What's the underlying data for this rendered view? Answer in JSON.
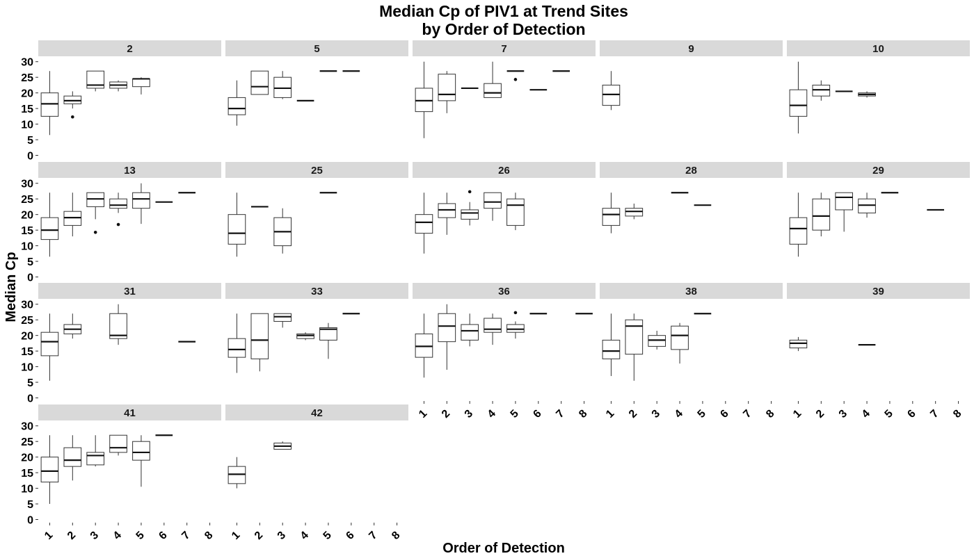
{
  "chart_data": {
    "type": "boxplot",
    "title": "Median Cp of PIV1 at Trend Sites",
    "subtitle": "by Order of Detection",
    "xlabel": "Order of Detection",
    "ylabel": "Median Cp",
    "x_categories": [
      "1",
      "2",
      "3",
      "4",
      "5",
      "6",
      "7",
      "8"
    ],
    "y_ticks": [
      0,
      5,
      10,
      15,
      20,
      25,
      30
    ],
    "ylim": [
      -1,
      31.5
    ],
    "grid": false,
    "layout": {
      "rows": 4,
      "cols": 5
    },
    "panels": [
      {
        "label": "2",
        "boxes": [
          {
            "x": "1",
            "min": 6.5,
            "q1": 12.5,
            "median": 16.5,
            "q3": 20,
            "max": 27
          },
          {
            "x": "2",
            "min": 15,
            "q1": 16.5,
            "median": 17.5,
            "q3": 19,
            "max": 20.5,
            "outliers": [
              12.3
            ]
          },
          {
            "x": "3",
            "min": 20.5,
            "q1": 21.5,
            "median": 22.5,
            "q3": 27,
            "max": 27
          },
          {
            "x": "4",
            "min": 20.5,
            "q1": 21.5,
            "median": 22.5,
            "q3": 23.5,
            "max": 24
          },
          {
            "x": "5",
            "min": 19.5,
            "q1": 22,
            "median": 24.5,
            "q3": 24.5,
            "max": 25
          }
        ]
      },
      {
        "label": "5",
        "boxes": [
          {
            "x": "1",
            "min": 9.5,
            "q1": 13,
            "median": 15,
            "q3": 18.5,
            "max": 24
          },
          {
            "x": "2",
            "min": 19.5,
            "q1": 19.5,
            "median": 22,
            "q3": 27,
            "max": 27
          },
          {
            "x": "3",
            "min": 18,
            "q1": 18.5,
            "median": 21.5,
            "q3": 25,
            "max": 27
          },
          {
            "x": "4",
            "min": 17.5,
            "q1": 17.5,
            "median": 17.5,
            "q3": 17.5,
            "max": 17.5
          },
          {
            "x": "5",
            "min": 27,
            "q1": 27,
            "median": 27,
            "q3": 27,
            "max": 27
          },
          {
            "x": "6",
            "min": 27,
            "q1": 27,
            "median": 27,
            "q3": 27,
            "max": 27
          }
        ]
      },
      {
        "label": "7",
        "boxes": [
          {
            "x": "1",
            "min": 5.5,
            "q1": 14,
            "median": 17.5,
            "q3": 21.5,
            "max": 30
          },
          {
            "x": "2",
            "min": 13.5,
            "q1": 17.5,
            "median": 19.5,
            "q3": 26,
            "max": 27
          },
          {
            "x": "3",
            "min": 21.5,
            "q1": 21.5,
            "median": 21.5,
            "q3": 21.5,
            "max": 21.5
          },
          {
            "x": "4",
            "min": 18.5,
            "q1": 18.5,
            "median": 20,
            "q3": 23,
            "max": 30
          },
          {
            "x": "5",
            "min": 27,
            "q1": 27,
            "median": 27,
            "q3": 27,
            "max": 27,
            "outliers": [
              24.3
            ]
          },
          {
            "x": "6",
            "min": 21,
            "q1": 21,
            "median": 21,
            "q3": 21,
            "max": 21
          },
          {
            "x": "7",
            "min": 27,
            "q1": 27,
            "median": 27,
            "q3": 27,
            "max": 27
          }
        ]
      },
      {
        "label": "9",
        "boxes": [
          {
            "x": "1",
            "min": 14.5,
            "q1": 16,
            "median": 19.5,
            "q3": 22.5,
            "max": 27
          }
        ]
      },
      {
        "label": "10",
        "boxes": [
          {
            "x": "1",
            "min": 7,
            "q1": 12.5,
            "median": 16,
            "q3": 21,
            "max": 30
          },
          {
            "x": "2",
            "min": 17.5,
            "q1": 19,
            "median": 21,
            "q3": 22.5,
            "max": 24
          },
          {
            "x": "3",
            "min": 20.5,
            "q1": 20.5,
            "median": 20.5,
            "q3": 20.5,
            "max": 20.5
          },
          {
            "x": "4",
            "min": 18.5,
            "q1": 19,
            "median": 19.5,
            "q3": 20,
            "max": 20.5
          }
        ]
      },
      {
        "label": "13",
        "boxes": [
          {
            "x": "1",
            "min": 6.5,
            "q1": 12,
            "median": 15,
            "q3": 19,
            "max": 27
          },
          {
            "x": "2",
            "min": 13,
            "q1": 16.5,
            "median": 19,
            "q3": 21,
            "max": 27
          },
          {
            "x": "3",
            "min": 18.5,
            "q1": 22.5,
            "median": 25,
            "q3": 27,
            "max": 27,
            "outliers": [
              14.3
            ]
          },
          {
            "x": "4",
            "min": 20.5,
            "q1": 22,
            "median": 23,
            "q3": 25,
            "max": 27,
            "outliers": [
              16.8
            ]
          },
          {
            "x": "5",
            "min": 17,
            "q1": 22,
            "median": 25,
            "q3": 27,
            "max": 30
          },
          {
            "x": "6",
            "min": 24,
            "q1": 24,
            "median": 24,
            "q3": 24,
            "max": 24
          },
          {
            "x": "7",
            "min": 27,
            "q1": 27,
            "median": 27,
            "q3": 27,
            "max": 27
          }
        ]
      },
      {
        "label": "25",
        "boxes": [
          {
            "x": "1",
            "min": 6.5,
            "q1": 10.5,
            "median": 14,
            "q3": 20,
            "max": 27
          },
          {
            "x": "2",
            "min": 22.5,
            "q1": 22.5,
            "median": 22.5,
            "q3": 22.5,
            "max": 22.5
          },
          {
            "x": "3",
            "min": 7.5,
            "q1": 10,
            "median": 14.5,
            "q3": 19,
            "max": 22
          },
          {
            "x": "5",
            "min": 27,
            "q1": 27,
            "median": 27,
            "q3": 27,
            "max": 27
          }
        ]
      },
      {
        "label": "26",
        "boxes": [
          {
            "x": "1",
            "min": 7.5,
            "q1": 14,
            "median": 17.5,
            "q3": 20,
            "max": 27
          },
          {
            "x": "2",
            "min": 13.5,
            "q1": 19,
            "median": 21.5,
            "q3": 23.5,
            "max": 27
          },
          {
            "x": "3",
            "min": 16.5,
            "q1": 18.5,
            "median": 20.5,
            "q3": 21.5,
            "max": 24,
            "outliers": [
              27.3
            ]
          },
          {
            "x": "4",
            "min": 18,
            "q1": 22,
            "median": 24,
            "q3": 27,
            "max": 27
          },
          {
            "x": "5",
            "min": 15,
            "q1": 16.5,
            "median": 23,
            "q3": 25,
            "max": 27
          }
        ]
      },
      {
        "label": "28",
        "boxes": [
          {
            "x": "1",
            "min": 14,
            "q1": 16.5,
            "median": 20,
            "q3": 22,
            "max": 27
          },
          {
            "x": "2",
            "min": 18.5,
            "q1": 19.5,
            "median": 21,
            "q3": 22,
            "max": 23.5
          },
          {
            "x": "4",
            "min": 27,
            "q1": 27,
            "median": 27,
            "q3": 27,
            "max": 27
          },
          {
            "x": "5",
            "min": 23,
            "q1": 23,
            "median": 23,
            "q3": 23,
            "max": 23
          }
        ]
      },
      {
        "label": "29",
        "boxes": [
          {
            "x": "1",
            "min": 6.5,
            "q1": 10.5,
            "median": 15.5,
            "q3": 19,
            "max": 27
          },
          {
            "x": "2",
            "min": 13,
            "q1": 15,
            "median": 19.5,
            "q3": 25,
            "max": 27
          },
          {
            "x": "3",
            "min": 14.5,
            "q1": 21.5,
            "median": 25.5,
            "q3": 27,
            "max": 27
          },
          {
            "x": "4",
            "min": 19,
            "q1": 20.5,
            "median": 23,
            "q3": 25,
            "max": 27
          },
          {
            "x": "5",
            "min": 27,
            "q1": 27,
            "median": 27,
            "q3": 27,
            "max": 27
          },
          {
            "x": "7",
            "min": 21.5,
            "q1": 21.5,
            "median": 21.5,
            "q3": 21.5,
            "max": 21.5
          }
        ]
      },
      {
        "label": "31",
        "boxes": [
          {
            "x": "1",
            "min": 5.5,
            "q1": 13.5,
            "median": 18,
            "q3": 21,
            "max": 27
          },
          {
            "x": "2",
            "min": 19,
            "q1": 20.5,
            "median": 22,
            "q3": 23.5,
            "max": 27
          },
          {
            "x": "4",
            "min": 17,
            "q1": 19,
            "median": 20,
            "q3": 27,
            "max": 30
          },
          {
            "x": "7",
            "min": 18,
            "q1": 18,
            "median": 18,
            "q3": 18,
            "max": 18
          }
        ]
      },
      {
        "label": "33",
        "boxes": [
          {
            "x": "1",
            "min": 8,
            "q1": 13,
            "median": 15.5,
            "q3": 19,
            "max": 27
          },
          {
            "x": "2",
            "min": 8.5,
            "q1": 12.5,
            "median": 18.5,
            "q3": 27,
            "max": 27
          },
          {
            "x": "3",
            "min": 22.5,
            "q1": 24.5,
            "median": 26,
            "q3": 27,
            "max": 27
          },
          {
            "x": "4",
            "min": 18.5,
            "q1": 19,
            "median": 20,
            "q3": 20.5,
            "max": 21
          },
          {
            "x": "5",
            "min": 12.5,
            "q1": 18.5,
            "median": 22,
            "q3": 22.5,
            "max": 24
          },
          {
            "x": "6",
            "min": 27,
            "q1": 27,
            "median": 27,
            "q3": 27,
            "max": 27
          }
        ]
      },
      {
        "label": "36",
        "boxes": [
          {
            "x": "1",
            "min": 6.5,
            "q1": 13,
            "median": 16.5,
            "q3": 20.5,
            "max": 27
          },
          {
            "x": "2",
            "min": 9,
            "q1": 18,
            "median": 23,
            "q3": 27,
            "max": 30
          },
          {
            "x": "3",
            "min": 16.5,
            "q1": 18.5,
            "median": 21.5,
            "q3": 23.5,
            "max": 27
          },
          {
            "x": "4",
            "min": 17,
            "q1": 21,
            "median": 22,
            "q3": 25.5,
            "max": 27
          },
          {
            "x": "5",
            "min": 19,
            "q1": 21,
            "median": 22,
            "q3": 23.5,
            "max": 24.5,
            "outliers": [
              27.3
            ]
          },
          {
            "x": "6",
            "min": 27,
            "q1": 27,
            "median": 27,
            "q3": 27,
            "max": 27
          },
          {
            "x": "8",
            "min": 27,
            "q1": 27,
            "median": 27,
            "q3": 27,
            "max": 27
          }
        ]
      },
      {
        "label": "38",
        "boxes": [
          {
            "x": "1",
            "min": 7,
            "q1": 12.5,
            "median": 15,
            "q3": 18.5,
            "max": 27
          },
          {
            "x": "2",
            "min": 5.5,
            "q1": 14,
            "median": 23,
            "q3": 25,
            "max": 27
          },
          {
            "x": "3",
            "min": 15.5,
            "q1": 16.5,
            "median": 18.5,
            "q3": 20,
            "max": 21.5
          },
          {
            "x": "4",
            "min": 11,
            "q1": 15.5,
            "median": 20,
            "q3": 23,
            "max": 24
          },
          {
            "x": "5",
            "min": 27,
            "q1": 27,
            "median": 27,
            "q3": 27,
            "max": 27
          }
        ]
      },
      {
        "label": "39",
        "boxes": [
          {
            "x": "1",
            "min": 15,
            "q1": 16,
            "median": 17.5,
            "q3": 18.5,
            "max": 19.5
          },
          {
            "x": "4",
            "min": 17,
            "q1": 17,
            "median": 17,
            "q3": 17,
            "max": 17
          }
        ]
      },
      {
        "label": "41",
        "boxes": [
          {
            "x": "1",
            "min": 5,
            "q1": 12,
            "median": 15.5,
            "q3": 20,
            "max": 27
          },
          {
            "x": "2",
            "min": 12.5,
            "q1": 17,
            "median": 19,
            "q3": 23,
            "max": 27
          },
          {
            "x": "3",
            "min": 17,
            "q1": 17.5,
            "median": 20.5,
            "q3": 21.5,
            "max": 27
          },
          {
            "x": "4",
            "min": 20.5,
            "q1": 21.5,
            "median": 23,
            "q3": 27,
            "max": 27
          },
          {
            "x": "5",
            "min": 10.5,
            "q1": 19,
            "median": 21.5,
            "q3": 25,
            "max": 27
          },
          {
            "x": "6",
            "min": 27,
            "q1": 27,
            "median": 27,
            "q3": 27,
            "max": 27
          }
        ]
      },
      {
        "label": "42",
        "boxes": [
          {
            "x": "1",
            "min": 10,
            "q1": 11.5,
            "median": 14.5,
            "q3": 17,
            "max": 20
          },
          {
            "x": "3",
            "min": 22.5,
            "q1": 22.5,
            "median": 23.5,
            "q3": 24.5,
            "max": 25
          }
        ]
      }
    ]
  }
}
